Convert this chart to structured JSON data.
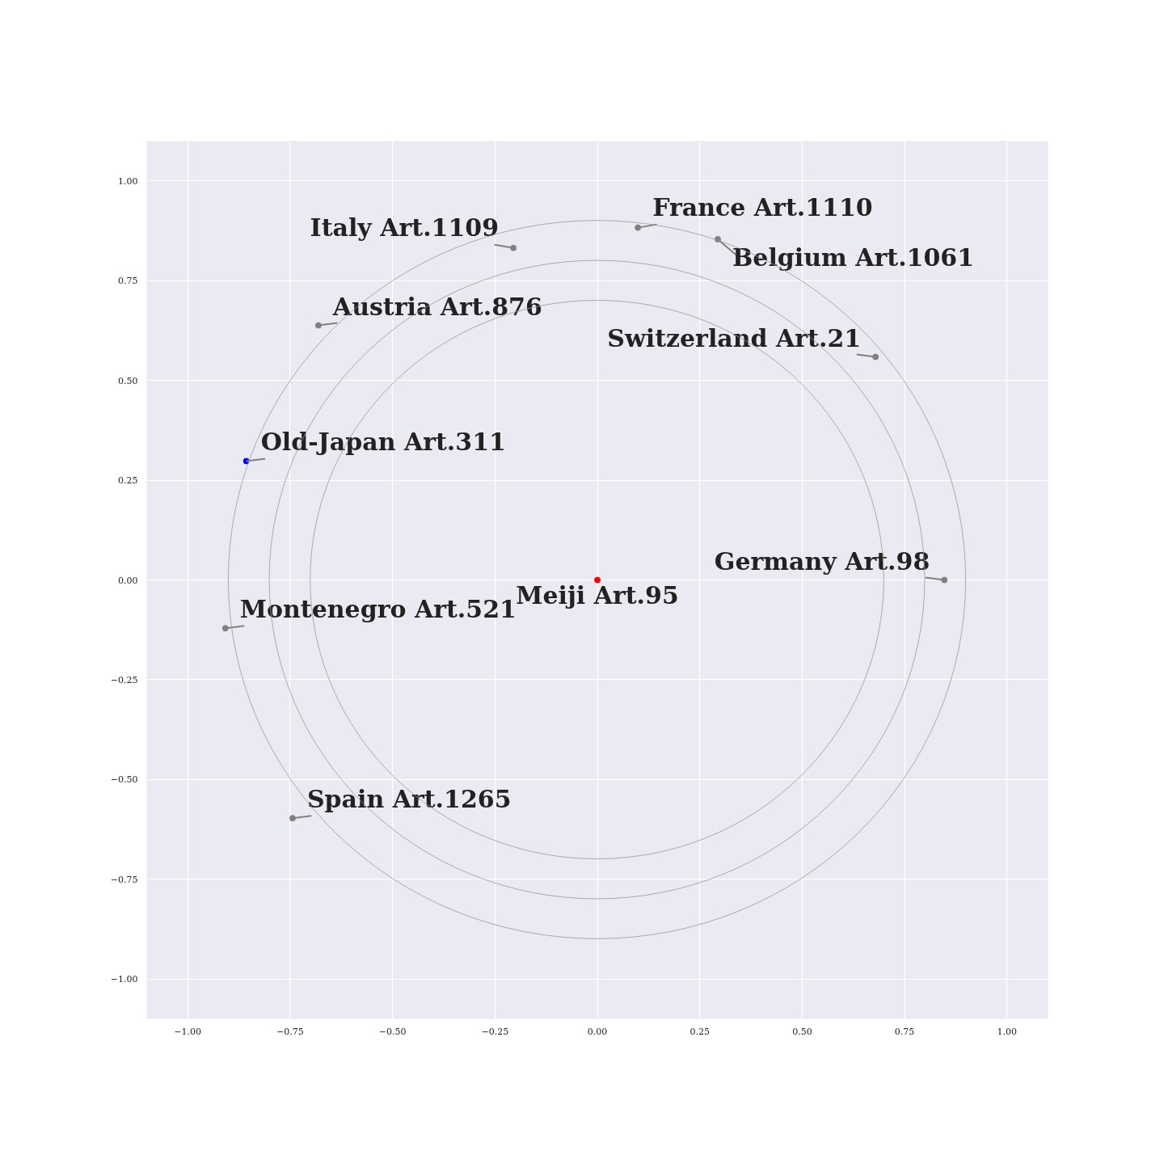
{
  "chart_data": {
    "type": "scatter",
    "xlim": [
      -1.1,
      1.1
    ],
    "ylim": [
      -1.1,
      1.1
    ],
    "xticks": [
      {
        "value": -1,
        "label": "−1.00"
      },
      {
        "value": -0.75,
        "label": "−0.75"
      },
      {
        "value": -0.5,
        "label": "−0.50"
      },
      {
        "value": -0.25,
        "label": "−0.25"
      },
      {
        "value": 0,
        "label": "0.00"
      },
      {
        "value": 0.25,
        "label": "0.25"
      },
      {
        "value": 0.5,
        "label": "0.50"
      },
      {
        "value": 0.75,
        "label": "0.75"
      },
      {
        "value": 1,
        "label": "1.00"
      }
    ],
    "yticks": [
      {
        "value": -1,
        "label": "−1.00"
      },
      {
        "value": -0.75,
        "label": "−0.75"
      },
      {
        "value": -0.5,
        "label": "−0.50"
      },
      {
        "value": -0.25,
        "label": "−0.25"
      },
      {
        "value": 0,
        "label": "0.00"
      },
      {
        "value": 0.25,
        "label": "0.25"
      },
      {
        "value": 0.5,
        "label": "0.50"
      },
      {
        "value": 0.75,
        "label": "0.75"
      },
      {
        "value": 1,
        "label": "1.00"
      }
    ],
    "grid": true,
    "series": [
      {
        "marker": "circle",
        "x": [
          0.099,
          0.294,
          -0.205,
          -0.681,
          0.679,
          -0.857,
          0.847,
          0,
          -0.908,
          -0.744
        ],
        "values": [
          0.883,
          0.854,
          0.832,
          0.638,
          0.559,
          0.298,
          0,
          0,
          -0.121,
          -0.597
        ],
        "colors": [
          "#808080",
          "#808080",
          "#808080",
          "#808080",
          "#808080",
          "#0000ff",
          "#808080",
          "#ff0000",
          "#808080",
          "#808080"
        ],
        "value_labels": [
          "France Art.1110",
          "Belgium Art.1061",
          "Italy Art.1109",
          "Austria Art.876",
          "Switzerland Art.21",
          "Old-Japan Art.311",
          "Germany Art.98",
          "Meiji Art.95",
          "Montenegro Art.521",
          "Spain Art.1265"
        ]
      }
    ]
  }
}
